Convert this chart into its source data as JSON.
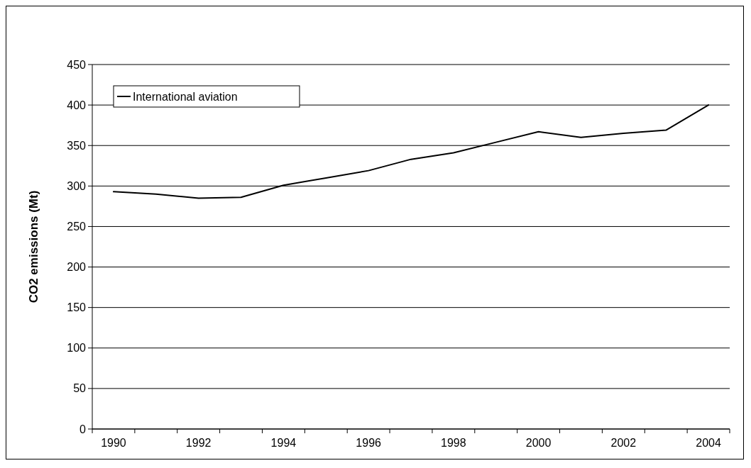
{
  "chart_data": {
    "type": "line",
    "ylabel": "CO2 emissions (Mt)",
    "categories": [
      "1990",
      null,
      "1992",
      null,
      "1994",
      null,
      "1996",
      null,
      "1998",
      null,
      "2000",
      null,
      "2002",
      null,
      "2004"
    ],
    "series": [
      {
        "name": "International aviation",
        "color": "#000000",
        "values": [
          293,
          290,
          285,
          286,
          301,
          310,
          319,
          333,
          341,
          354,
          367,
          360,
          365,
          369,
          400
        ]
      }
    ],
    "ylim": [
      0,
      450
    ],
    "yticks": [
      0,
      50,
      100,
      150,
      200,
      250,
      300,
      350,
      400,
      450
    ],
    "grid": "y",
    "legend": "top left",
    "marker": "none",
    "line_style": "solid"
  }
}
